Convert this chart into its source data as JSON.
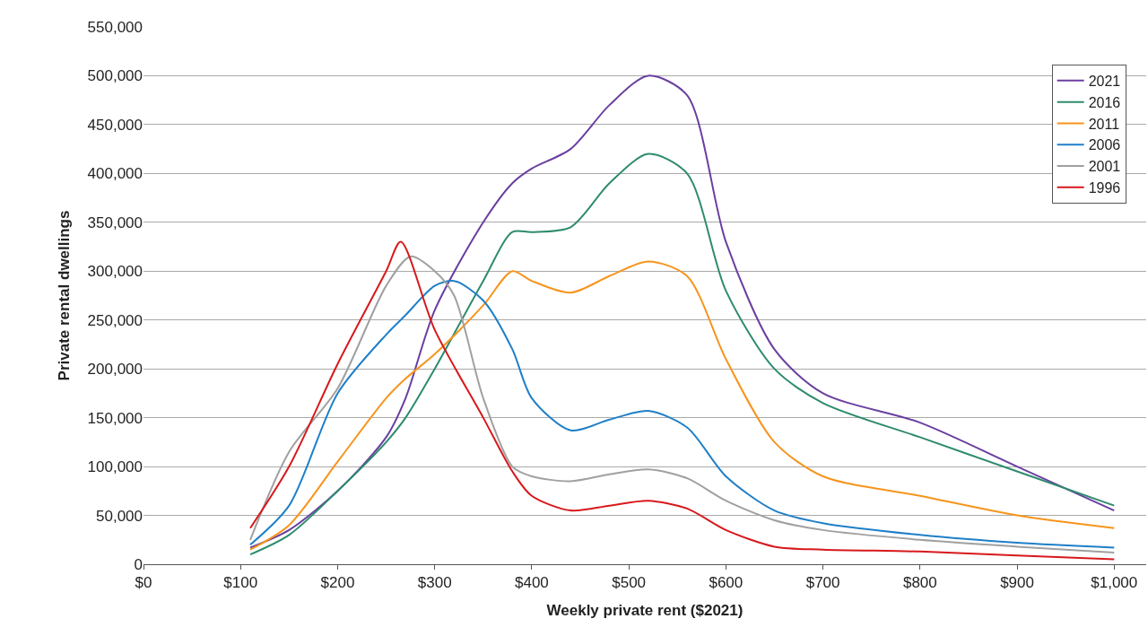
{
  "chart_data": {
    "type": "line",
    "xlabel": "Weekly private rent ($2021)",
    "ylabel": "Private rental dwellings",
    "xlim": [
      0,
      1033
    ],
    "xticks": [
      {
        "value": 0,
        "label": "$0"
      },
      {
        "value": 100,
        "label": "$100"
      },
      {
        "value": 200,
        "label": "$200"
      },
      {
        "value": 300,
        "label": "$300"
      },
      {
        "value": 400,
        "label": "$400"
      },
      {
        "value": 500,
        "label": "$500"
      },
      {
        "value": 600,
        "label": "$600"
      },
      {
        "value": 700,
        "label": "$700"
      },
      {
        "value": 800,
        "label": "$800"
      },
      {
        "value": 900,
        "label": "$900"
      },
      {
        "value": 1000,
        "label": "$1,000"
      }
    ],
    "ylim": [
      0,
      550000
    ],
    "yticks": [
      {
        "value": 0,
        "label": "0"
      },
      {
        "value": 50000,
        "label": "50,000"
      },
      {
        "value": 100000,
        "label": "100,000"
      },
      {
        "value": 150000,
        "label": "150,000"
      },
      {
        "value": 200000,
        "label": "200,000"
      },
      {
        "value": 250000,
        "label": "250,000"
      },
      {
        "value": 300000,
        "label": "300,000"
      },
      {
        "value": 350000,
        "label": "350,000"
      },
      {
        "value": 400000,
        "label": "400,000"
      },
      {
        "value": 450000,
        "label": "450,000"
      },
      {
        "value": 500000,
        "label": "500,000"
      },
      {
        "value": 550000,
        "label": "550,000"
      }
    ],
    "grid": "y",
    "legend": "top right",
    "line_style": "solid",
    "series": [
      {
        "name": "2021",
        "color": "#6a3fa0",
        "x": [
          110,
          150,
          200,
          250,
          270,
          300,
          350,
          380,
          400,
          440,
          480,
          520,
          560,
          600,
          650,
          700,
          800,
          900,
          1000
        ],
        "values": [
          17000,
          35000,
          75000,
          130000,
          170000,
          260000,
          350000,
          390000,
          405000,
          425000,
          470000,
          500000,
          480000,
          330000,
          220000,
          175000,
          145000,
          100000,
          55000
        ]
      },
      {
        "name": "2016",
        "color": "#2e8b6e",
        "x": [
          110,
          150,
          200,
          250,
          270,
          300,
          350,
          380,
          400,
          440,
          480,
          520,
          560,
          600,
          650,
          700,
          800,
          900,
          1000
        ],
        "values": [
          10000,
          30000,
          75000,
          125000,
          150000,
          200000,
          290000,
          340000,
          340000,
          345000,
          390000,
          420000,
          400000,
          280000,
          200000,
          165000,
          130000,
          95000,
          60000
        ]
      },
      {
        "name": "2011",
        "color": "#f7941d",
        "x": [
          110,
          150,
          200,
          250,
          270,
          300,
          350,
          380,
          400,
          440,
          480,
          520,
          560,
          600,
          650,
          700,
          800,
          900,
          1000
        ],
        "values": [
          15000,
          40000,
          105000,
          170000,
          190000,
          215000,
          265000,
          300000,
          290000,
          278000,
          295000,
          310000,
          295000,
          210000,
          125000,
          90000,
          70000,
          50000,
          37000
        ]
      },
      {
        "name": "2006",
        "color": "#1f7fc8",
        "x": [
          110,
          150,
          200,
          250,
          270,
          300,
          320,
          350,
          380,
          400,
          440,
          480,
          520,
          560,
          600,
          650,
          700,
          800,
          900,
          1000
        ],
        "values": [
          20000,
          60000,
          175000,
          235000,
          255000,
          285000,
          290000,
          270000,
          220000,
          170000,
          137000,
          148000,
          157000,
          140000,
          90000,
          55000,
          42000,
          30000,
          22000,
          17000
        ]
      },
      {
        "name": "2001",
        "color": "#a0a0a0",
        "x": [
          110,
          150,
          200,
          250,
          275,
          300,
          320,
          350,
          380,
          400,
          440,
          480,
          520,
          560,
          600,
          650,
          700,
          800,
          900,
          1000
        ],
        "values": [
          25000,
          115000,
          180000,
          285000,
          315000,
          300000,
          275000,
          170000,
          100000,
          90000,
          85000,
          92000,
          97000,
          88000,
          65000,
          45000,
          35000,
          25000,
          18000,
          12000
        ]
      },
      {
        "name": "1996",
        "color": "#d7191c",
        "x": [
          110,
          150,
          200,
          250,
          265,
          300,
          350,
          380,
          400,
          440,
          480,
          520,
          560,
          600,
          650,
          700,
          800,
          900,
          1000
        ],
        "values": [
          37000,
          100000,
          205000,
          300000,
          330000,
          240000,
          150000,
          95000,
          70000,
          55000,
          60000,
          65000,
          57000,
          35000,
          18000,
          15000,
          13000,
          9000,
          5000
        ]
      }
    ]
  }
}
